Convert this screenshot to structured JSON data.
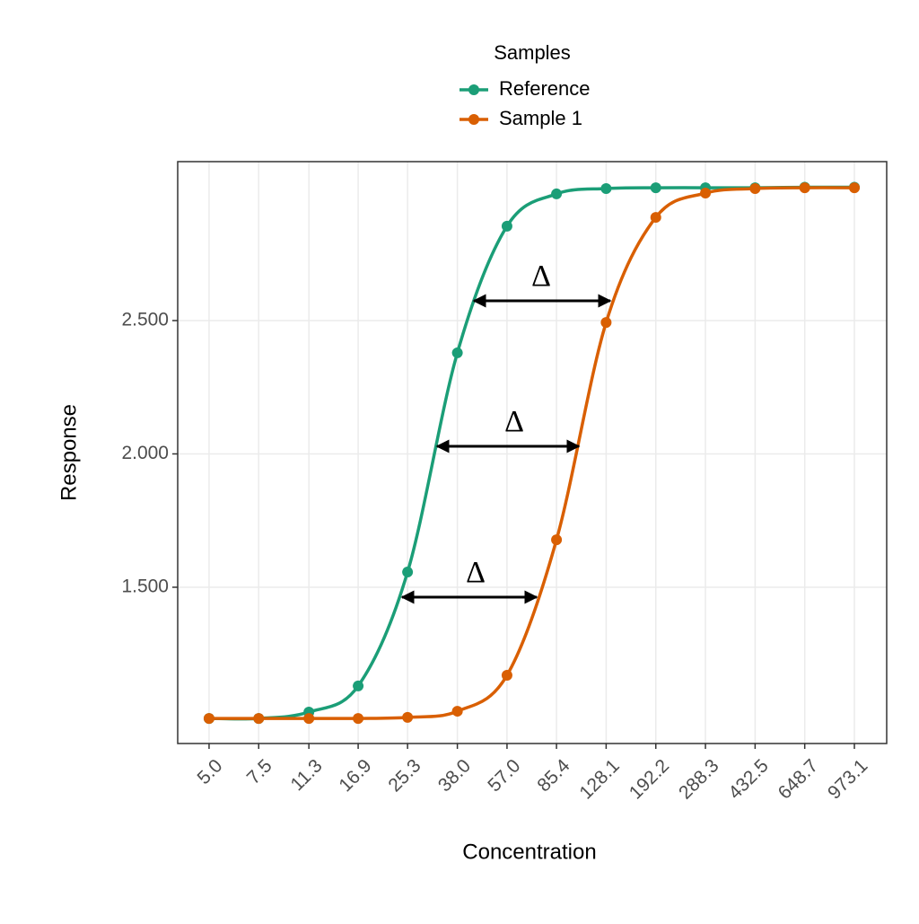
{
  "chart_data": {
    "type": "line",
    "x_label": "Concentration",
    "y_label": "Response",
    "legend_title": "Samples",
    "x": [
      {
        "value": 5.0,
        "label": "5.0"
      },
      7.5,
      11.3,
      16.9,
      25.3,
      {
        "value": 38.0,
        "label": "38.0"
      },
      {
        "value": 57.0,
        "label": "57.0"
      },
      85.4,
      128.1,
      192.2,
      288.3,
      432.5,
      648.7,
      973.1
    ],
    "series": [
      {
        "name": "Reference",
        "color": "#1b9e77",
        "values": [
          1.008,
          1.008,
          1.032,
          1.13,
          1.557,
          2.379,
          2.854,
          2.975,
          2.995,
          2.998,
          2.998,
          2.998,
          3.0,
          3.0
        ]
      },
      {
        "name": "Sample 1",
        "color": "#d95f02",
        "values": [
          1.008,
          1.008,
          1.008,
          1.008,
          1.012,
          1.035,
          1.17,
          1.678,
          2.493,
          2.887,
          2.978,
          2.995,
          2.998,
          2.998
        ]
      }
    ],
    "xlim": [
      3.87,
      1267
    ],
    "x_log": true,
    "xticks": [
      {
        "value": 5.0,
        "label": "5.0"
      },
      7.5,
      11.3,
      16.9,
      25.3,
      {
        "value": 38.0,
        "label": "38.0"
      },
      {
        "value": 57.0,
        "label": "57.0"
      },
      85.4,
      128.1,
      192.2,
      288.3,
      432.5,
      648.7,
      973.1
    ],
    "ylim": [
      0.914,
      3.096
    ],
    "yticks": [
      {
        "value": 1.5,
        "label": "1.500"
      },
      {
        "value": 2.0,
        "label": "2.000"
      },
      {
        "value": 2.5,
        "label": "2.500"
      }
    ],
    "grid": true,
    "legend_position": "top",
    "annotations": [
      "Δ",
      "Δ",
      "Δ"
    ]
  }
}
